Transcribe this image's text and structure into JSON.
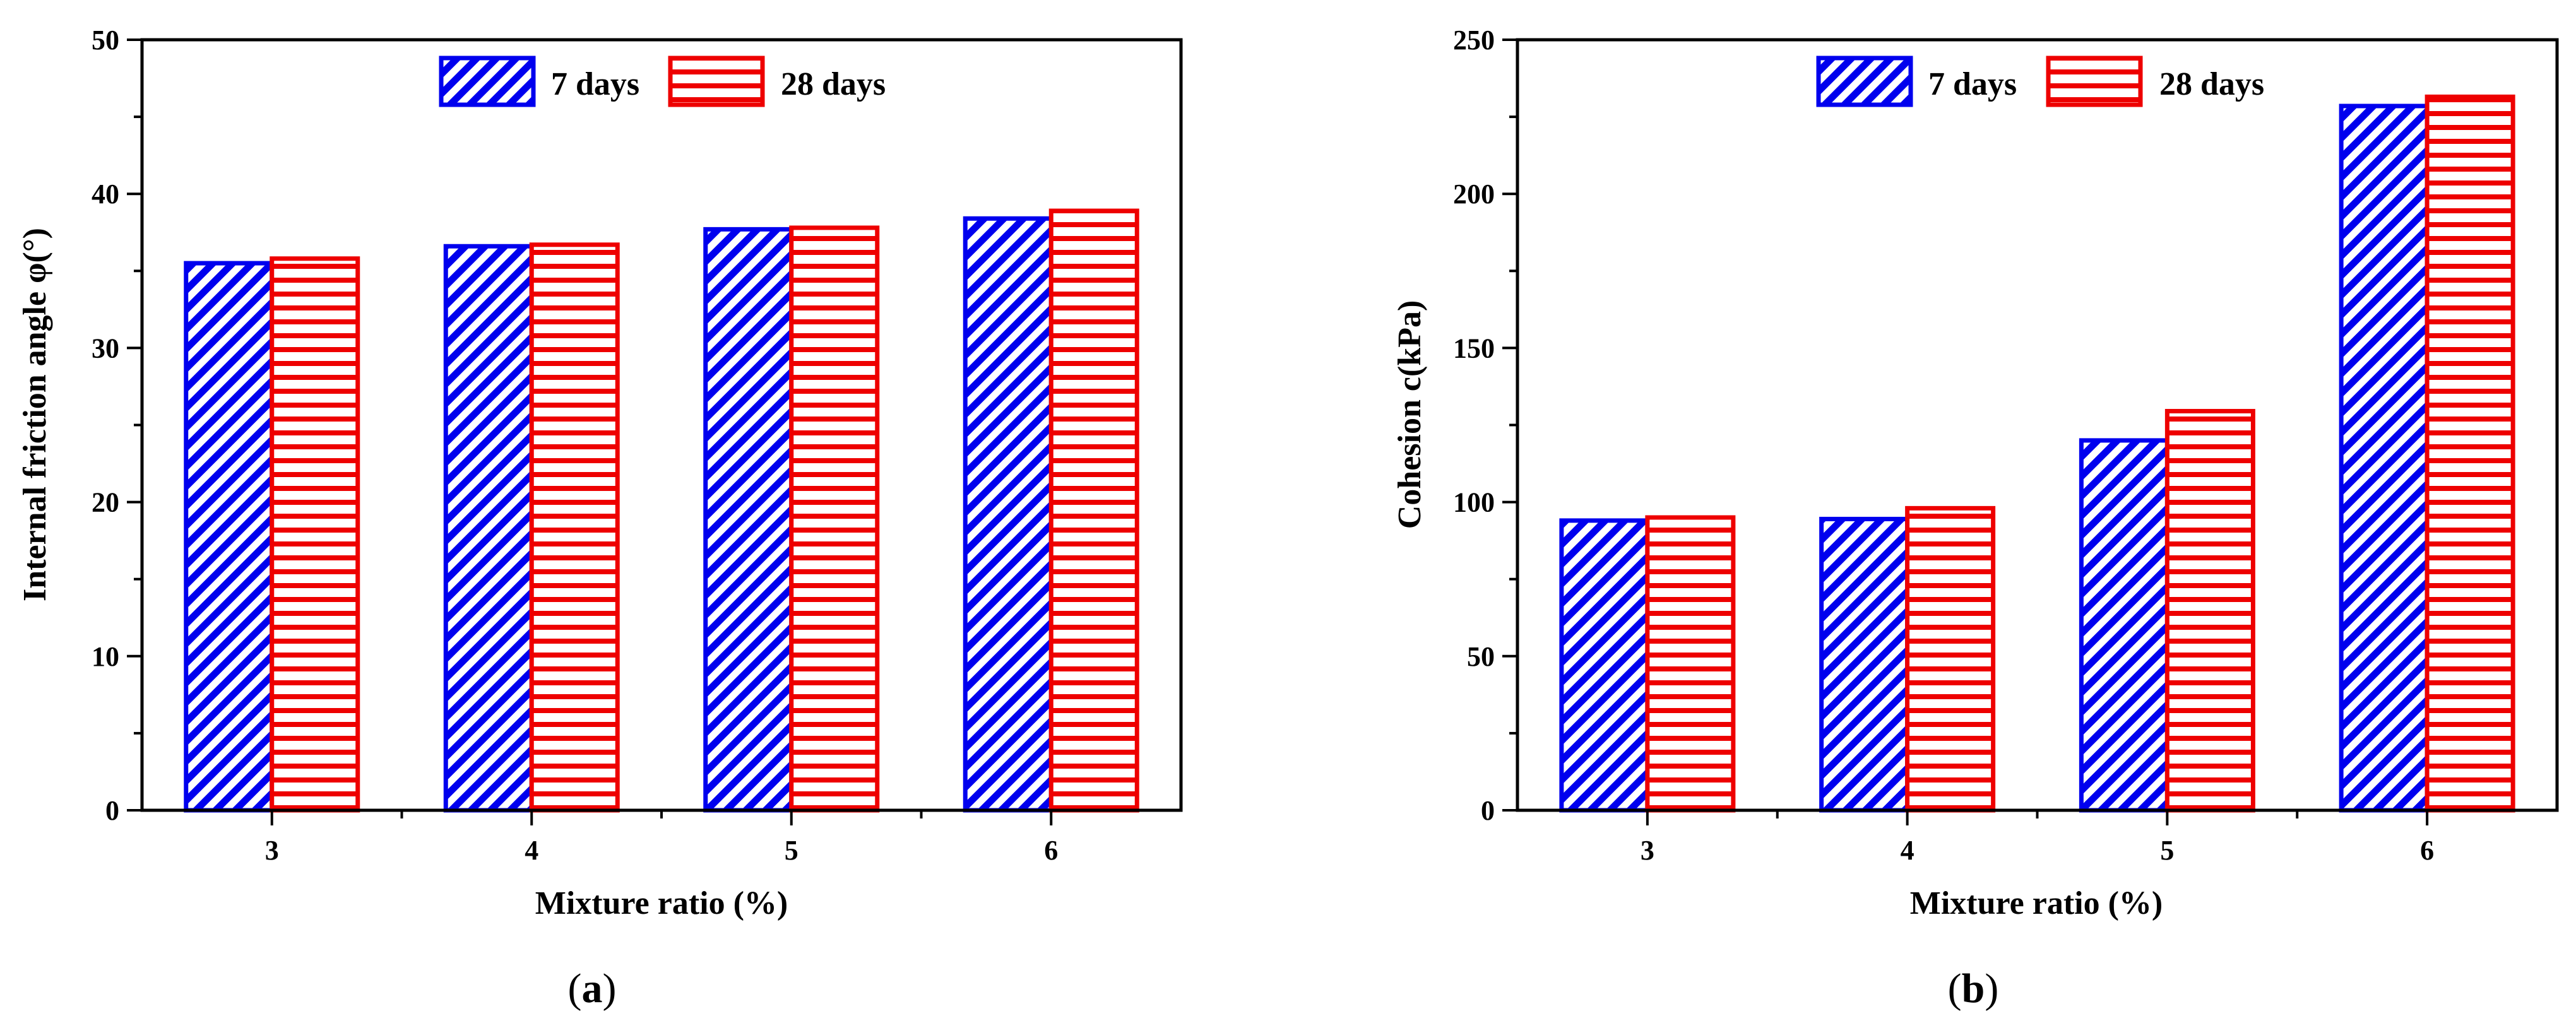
{
  "figure": {
    "panels": [
      {
        "label_open": "(",
        "label_letter": "a",
        "label_close": ")"
      },
      {
        "label_open": "(",
        "label_letter": "b",
        "label_close": ")"
      }
    ]
  },
  "colors": {
    "series_7": "#0000ee",
    "series_28": "#ee0000",
    "axis": "#000000"
  },
  "chart_data": [
    {
      "type": "bar",
      "title": "",
      "xlabel": "Mixture ratio (%)",
      "ylabel": "Internal friction angle φ(°)",
      "categories": [
        "3",
        "4",
        "5",
        "6"
      ],
      "ylim": [
        0,
        50
      ],
      "yticks": [
        0,
        10,
        20,
        30,
        40,
        50
      ],
      "yticklabels": [
        "0",
        "10",
        "20",
        "30",
        "40",
        "50"
      ],
      "legend_position": "top-center",
      "series": [
        {
          "name": "7 days",
          "pattern": "diagonal-hatch",
          "values": [
            35.5,
            36.6,
            37.7,
            38.4
          ]
        },
        {
          "name": "28 days",
          "pattern": "horizontal-hatch",
          "values": [
            35.8,
            36.7,
            37.8,
            38.9
          ]
        }
      ]
    },
    {
      "type": "bar",
      "title": "",
      "xlabel": "Mixture ratio (%)",
      "ylabel": "Cohesion c(kPa)",
      "categories": [
        "3",
        "4",
        "5",
        "6"
      ],
      "ylim": [
        0,
        250
      ],
      "yticks": [
        0,
        50,
        100,
        150,
        200,
        250
      ],
      "yticklabels": [
        "0",
        "50",
        "100",
        "150",
        "200",
        "250"
      ],
      "legend_position": "top-center",
      "series": [
        {
          "name": "7 days",
          "pattern": "diagonal-hatch",
          "values": [
            94,
            94.5,
            120,
            228.5
          ]
        },
        {
          "name": "28 days",
          "pattern": "horizontal-hatch",
          "values": [
            95,
            98,
            129.5,
            231.5
          ]
        }
      ]
    }
  ]
}
